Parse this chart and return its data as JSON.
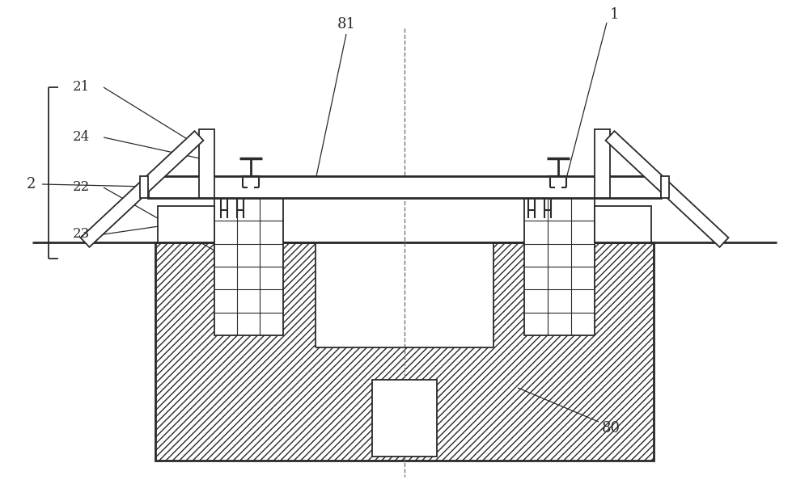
{
  "bg": "#ffffff",
  "lc": "#2a2a2a",
  "figsize": [
    10.0,
    5.99
  ],
  "dpi": 100,
  "fs": 13
}
